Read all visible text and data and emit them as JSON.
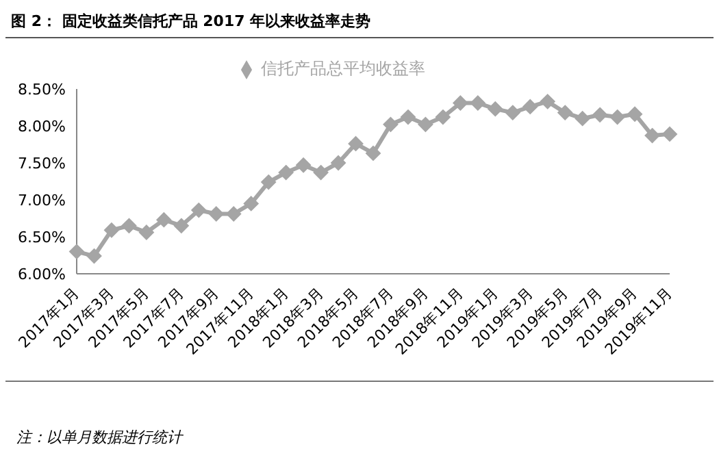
{
  "chart_data": {
    "type": "line",
    "title": "图 2： 固定收益类信托产品 2017 年以来收益率走势",
    "categories": [
      "2017年1月",
      null,
      "2017年3月",
      null,
      "2017年5月",
      null,
      "2017年7月",
      null,
      "2017年9月",
      null,
      "2017年11月",
      null,
      "2018年1月",
      null,
      "2018年3月",
      null,
      "2018年5月",
      null,
      "2018年7月",
      null,
      "2018年9月",
      null,
      "2018年11月",
      null,
      "2019年1月",
      null,
      "2019年3月",
      null,
      "2019年5月",
      null,
      "2019年7月",
      null,
      "2019年9月",
      null,
      "2019年11月"
    ],
    "series": [
      {
        "name": "信托产品总平均收益率",
        "color": "#a5a5a5",
        "values": [
          6.3,
          6.24,
          6.59,
          6.65,
          6.56,
          6.73,
          6.65,
          6.86,
          6.81,
          6.81,
          6.95,
          7.24,
          7.37,
          7.47,
          7.37,
          7.5,
          7.76,
          7.63,
          8.02,
          8.12,
          8.02,
          8.12,
          8.31,
          8.31,
          8.23,
          8.18,
          8.26,
          8.33,
          8.18,
          8.1,
          8.15,
          8.12,
          8.16,
          7.87,
          7.89
        ]
      }
    ],
    "ylim": [
      6,
      8.5
    ],
    "yticks": [
      {
        "value": 6,
        "label": "6.00%"
      },
      {
        "value": 6.5,
        "label": "6.50%"
      },
      {
        "value": 7,
        "label": "7.00%"
      },
      {
        "value": 7.5,
        "label": "7.50%"
      },
      {
        "value": 8,
        "label": "8.00%"
      },
      {
        "value": 8.5,
        "label": "8.50%"
      }
    ],
    "grid": false,
    "legend": "top",
    "marker": "diamond",
    "line_style": "solid",
    "annotations": [
      "注：以单月数据进行统计"
    ]
  }
}
